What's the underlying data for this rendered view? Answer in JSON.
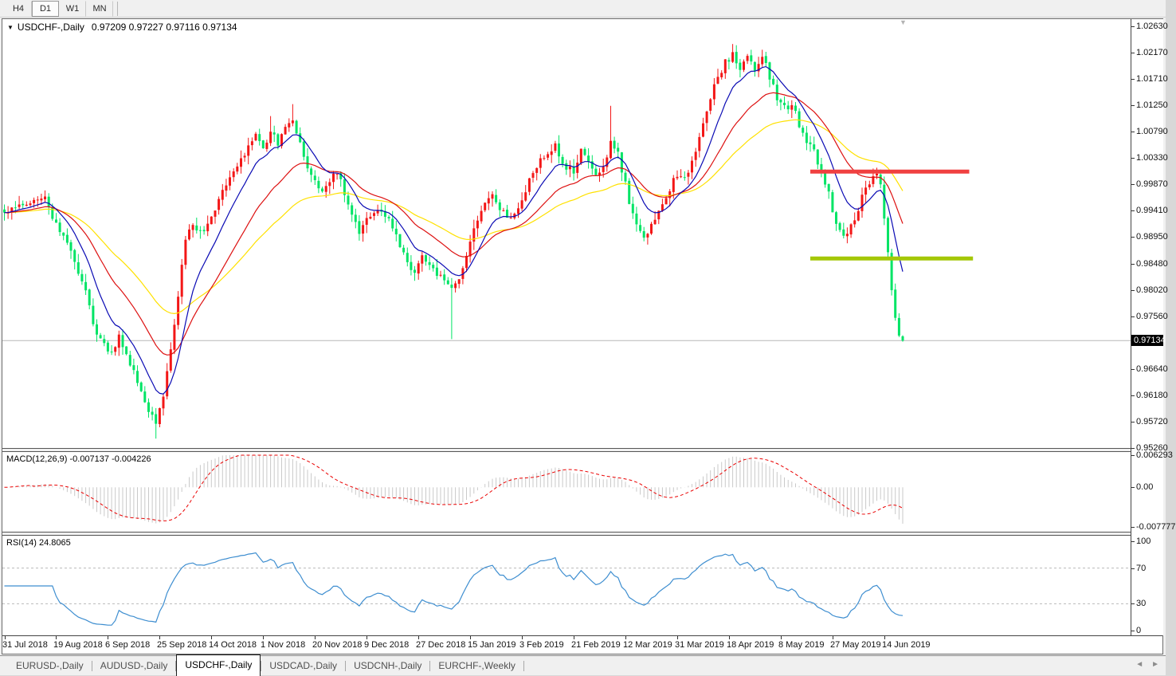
{
  "toolbar": {
    "buttons": [
      {
        "label": "H4",
        "active": false
      },
      {
        "label": "D1",
        "active": true
      },
      {
        "label": "W1",
        "active": false
      },
      {
        "label": "MN",
        "active": false
      }
    ]
  },
  "chart": {
    "title": "USDCHF-,Daily",
    "ohlc_text": "0.97209 0.97227 0.97116 0.97134"
  },
  "icons": {
    "title_dropdown": "▼",
    "shift_marker": "▼",
    "tab_scroll_left": "◄",
    "tab_scroll_right": "►"
  },
  "price_axis": {
    "ticks": [
      "1.02630",
      "1.02170",
      "1.01710",
      "1.01250",
      "1.00790",
      "1.00330",
      "0.99870",
      "0.99410",
      "0.98950",
      "0.98480",
      "0.98020",
      "0.97560",
      "0.96640",
      "0.96180",
      "0.95720",
      "0.95260"
    ],
    "current": "0.97134"
  },
  "indicators": {
    "macd": {
      "label": "MACD(12,26,9)",
      "values": "-0.007137 -0.004226",
      "axis_labels": [
        "0.006293",
        "0.00",
        "-0.007777"
      ]
    },
    "rsi": {
      "label": "RSI(14)",
      "value": "24.8065",
      "axis_labels": [
        "100",
        "70",
        "30",
        "0"
      ]
    }
  },
  "time_axis": {
    "labels": [
      "31 Jul 2018",
      "19 Aug 2018",
      "6 Sep 2018",
      "25 Sep 2018",
      "14 Oct 2018",
      "1 Nov 2018",
      "20 Nov 2018",
      "9 Dec 2018",
      "27 Dec 2018",
      "15 Jan 2019",
      "3 Feb 2019",
      "21 Feb 2019",
      "12 Mar 2019",
      "31 Mar 2019",
      "18 Apr 2019",
      "8 May 2019",
      "27 May 2019",
      "14 Jun 2019"
    ]
  },
  "tabs": {
    "items": [
      {
        "label": "EURUSD-,Daily",
        "active": false
      },
      {
        "label": "AUDUSD-,Daily",
        "active": false
      },
      {
        "label": "USDCHF-,Daily",
        "active": true
      },
      {
        "label": "USDCAD-,Daily",
        "active": false
      },
      {
        "label": "USDCNH-,Daily",
        "active": false
      },
      {
        "label": "EURCHF-,Weekly",
        "active": false
      }
    ]
  },
  "colors": {
    "bull_up": "#f31717",
    "bear_down": "#00e465",
    "ma_fast_blue": "#0a0ab4",
    "ma_mid_red": "#dd1111",
    "ma_slow_yellow": "#ffe100",
    "macd_hist": "#c9c9c9",
    "macd_signal": "#ea0000",
    "rsi_line": "#3e8ed0",
    "resistance_line": "#f04040",
    "support_line": "#a4c707",
    "current_price_line": "#b8b8b8",
    "current_price_bg": "#000000",
    "current_price_fg": "#ffffff"
  },
  "chart_data": {
    "type": "candlestick",
    "symbol": "USDCHF-",
    "timeframe": "Daily",
    "title": "USDCHF-,Daily",
    "candle_count": 244,
    "seed": 12,
    "up_color_note": "up candles red, down candles green",
    "last_ohlc": {
      "open": 0.97209,
      "high": 0.97227,
      "low": 0.97116,
      "close": 0.97134
    },
    "current_price": 0.97134,
    "y_axis": {
      "top_tick": 1.0263,
      "tick_step": 0.0046,
      "visible_range": [
        0.9524,
        1.0276
      ]
    },
    "x_ticks_every_candles": 14,
    "price_path": [
      [
        0,
        0.994
      ],
      [
        4,
        0.9951
      ],
      [
        8,
        0.9958
      ],
      [
        11,
        0.997
      ],
      [
        13,
        0.9932
      ],
      [
        16,
        0.9898
      ],
      [
        19,
        0.9855
      ],
      [
        22,
        0.9798
      ],
      [
        24,
        0.9742
      ],
      [
        27,
        0.9705
      ],
      [
        29,
        0.9692
      ],
      [
        31,
        0.9722
      ],
      [
        33,
        0.969
      ],
      [
        36,
        0.9645
      ],
      [
        38,
        0.9608
      ],
      [
        40,
        0.958
      ],
      [
        41,
        0.9572
      ],
      [
        43,
        0.962
      ],
      [
        45,
        0.97
      ],
      [
        47,
        0.9795
      ],
      [
        49,
        0.989
      ],
      [
        51,
        0.9918
      ],
      [
        53,
        0.99
      ],
      [
        56,
        0.9932
      ],
      [
        59,
        0.9975
      ],
      [
        62,
        1.0008
      ],
      [
        65,
        1.004
      ],
      [
        68,
        1.0072
      ],
      [
        70,
        1.005
      ],
      [
        72,
        1.0078
      ],
      [
        74,
        1.0058
      ],
      [
        76,
        1.0082
      ],
      [
        78,
        1.0096
      ],
      [
        80,
        1.0055
      ],
      [
        82,
        1.0018
      ],
      [
        84,
        0.9988
      ],
      [
        86,
        0.9968
      ],
      [
        88,
        0.9996
      ],
      [
        90,
        1.0006
      ],
      [
        92,
        0.9974
      ],
      [
        94,
        0.9938
      ],
      [
        96,
        0.9906
      ],
      [
        99,
        0.9936
      ],
      [
        102,
        0.994
      ],
      [
        105,
        0.9916
      ],
      [
        108,
        0.9862
      ],
      [
        111,
        0.9828
      ],
      [
        113,
        0.9858
      ],
      [
        116,
        0.984
      ],
      [
        119,
        0.9818
      ],
      [
        121,
        0.98
      ],
      [
        124,
        0.9838
      ],
      [
        127,
        0.9906
      ],
      [
        130,
        0.995
      ],
      [
        132,
        0.9968
      ],
      [
        134,
        0.9946
      ],
      [
        137,
        0.9928
      ],
      [
        140,
        0.9962
      ],
      [
        143,
        1.0008
      ],
      [
        146,
        1.0038
      ],
      [
        149,
        1.0056
      ],
      [
        151,
        1.0022
      ],
      [
        154,
        1.0012
      ],
      [
        156,
        1.0044
      ],
      [
        158,
        1.0024
      ],
      [
        160,
        1.0002
      ],
      [
        162,
        1.0012
      ],
      [
        164,
        1.0068
      ],
      [
        166,
        1.004
      ],
      [
        168,
        0.9986
      ],
      [
        170,
        0.993
      ],
      [
        173,
        0.9898
      ],
      [
        175,
        0.9912
      ],
      [
        177,
        0.9936
      ],
      [
        179,
        0.9964
      ],
      [
        181,
        0.9992
      ],
      [
        183,
        0.9998
      ],
      [
        185,
        1.0006
      ],
      [
        187,
        1.0044
      ],
      [
        189,
        1.0095
      ],
      [
        191,
        1.014
      ],
      [
        193,
        1.0175
      ],
      [
        195,
        1.02
      ],
      [
        197,
        1.0212
      ],
      [
        199,
        1.019
      ],
      [
        201,
        1.0205
      ],
      [
        203,
        1.0188
      ],
      [
        205,
        1.0212
      ],
      [
        207,
        1.0175
      ],
      [
        209,
        1.014
      ],
      [
        211,
        1.012
      ],
      [
        213,
        1.0128
      ],
      [
        215,
        1.0092
      ],
      [
        217,
        1.0062
      ],
      [
        219,
        1.0042
      ],
      [
        221,
        1.0012
      ],
      [
        223,
        0.9968
      ],
      [
        225,
        0.992
      ],
      [
        227,
        0.9898
      ],
      [
        229,
        0.9912
      ],
      [
        231,
        0.9946
      ],
      [
        233,
        0.9982
      ],
      [
        235,
        1.0002
      ],
      [
        236,
        1.0008
      ],
      [
        237,
        0.9988
      ],
      [
        238,
        0.993
      ],
      [
        239,
        0.9868
      ],
      [
        240,
        0.9805
      ],
      [
        241,
        0.9752
      ],
      [
        242,
        0.9722
      ],
      [
        243,
        0.97134
      ]
    ],
    "wick_events": [
      {
        "index": 41,
        "low": 0.9542
      },
      {
        "index": 72,
        "high": 1.0106
      },
      {
        "index": 78,
        "high": 1.0127
      },
      {
        "index": 121,
        "low": 0.9716
      },
      {
        "index": 164,
        "high": 1.0124
      },
      {
        "index": 197,
        "high": 1.0232
      },
      {
        "index": 205,
        "high": 1.0222
      }
    ],
    "overlays": [
      {
        "name": "ma-fast",
        "period": 10,
        "color_key": "ma_fast_blue"
      },
      {
        "name": "ma-mid",
        "period": 25,
        "color_key": "ma_mid_red"
      },
      {
        "name": "ma-slow",
        "period": 50,
        "color_key": "ma_slow_yellow"
      }
    ],
    "hlines": [
      {
        "name": "resistance",
        "price": 1.0009,
        "color_key": "resistance_line",
        "from_index": 218,
        "to_index": 261,
        "width": 5
      },
      {
        "name": "support",
        "price": 0.9857,
        "color_key": "support_line",
        "from_index": 218,
        "to_index": 262,
        "width": 5
      }
    ],
    "macd": {
      "params": [
        12,
        26,
        9
      ],
      "axis_max": 0.006293,
      "axis_min": -0.007777,
      "displayed": [
        -0.007137,
        -0.004226
      ]
    },
    "rsi": {
      "period": 14,
      "levels": [
        70,
        30
      ],
      "displayed": 24.8065,
      "axis_range": [
        0,
        100
      ]
    }
  }
}
